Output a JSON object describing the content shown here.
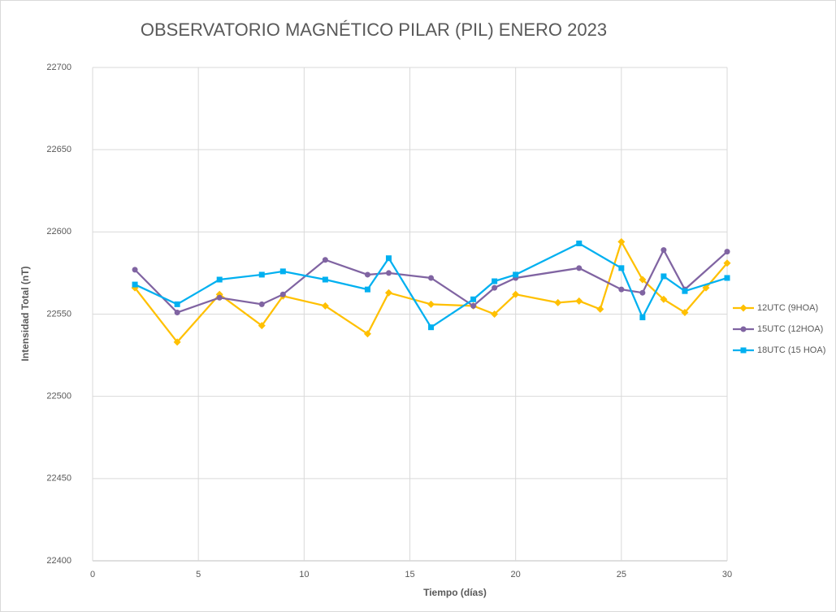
{
  "chart_data": {
    "type": "line",
    "title": "OBSERVATORIO MAGNÉTICO PILAR (PIL) ENERO 2023",
    "x_label": "Tiempo (días)",
    "y_label": "Intensidad Total (nT)",
    "xlim": [
      0,
      30
    ],
    "xticks": [
      0,
      5,
      10,
      15,
      20,
      25,
      30
    ],
    "ylim": [
      22400,
      22700
    ],
    "yticks": [
      22400,
      22450,
      22500,
      22550,
      22600,
      22650,
      22700
    ],
    "grid": true,
    "legend": "right",
    "series": [
      {
        "name": "12UTC (9HOA)",
        "color": "#ffc000",
        "marker": "diamond",
        "x": [
          2,
          4,
          6,
          8,
          9,
          11,
          13,
          14,
          16,
          18,
          19,
          20,
          22,
          23,
          24,
          25,
          26,
          27,
          28,
          29,
          30
        ],
        "values": [
          22566,
          22533,
          22562,
          22543,
          22561,
          22555,
          22538,
          22563,
          22556,
          22555,
          22550,
          22562,
          22557,
          22558,
          22553,
          22594,
          22571,
          22559,
          22551,
          22566,
          22581
        ]
      },
      {
        "name": "15UTC (12HOA)",
        "color": "#8064a2",
        "marker": "circle",
        "x": [
          2,
          4,
          6,
          8,
          9,
          11,
          13,
          14,
          16,
          18,
          19,
          20,
          23,
          25,
          26,
          27,
          28,
          30
        ],
        "values": [
          22577,
          22551,
          22560,
          22556,
          22562,
          22583,
          22574,
          22575,
          22572,
          22555,
          22566,
          22572,
          22578,
          22565,
          22563,
          22589,
          22565,
          22588
        ]
      },
      {
        "name": "18UTC (15 HOA)",
        "color": "#00b0f0",
        "marker": "square",
        "x": [
          2,
          4,
          6,
          8,
          9,
          11,
          13,
          14,
          16,
          18,
          19,
          20,
          23,
          25,
          26,
          27,
          28,
          30
        ],
        "values": [
          22568,
          22556,
          22571,
          22574,
          22576,
          22571,
          22565,
          22584,
          22542,
          22559,
          22570,
          22574,
          22593,
          22578,
          22548,
          22573,
          22564,
          22572
        ]
      }
    ]
  }
}
